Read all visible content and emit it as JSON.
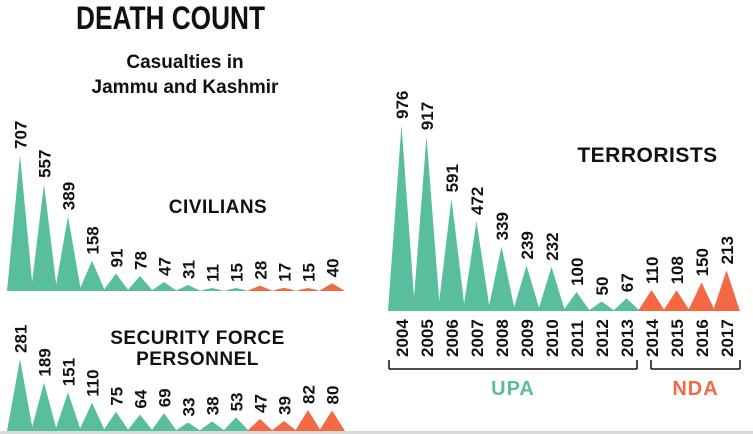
{
  "title": "DEATH COUNT",
  "subtitle": "Casualties in\nJammu and Kashmir",
  "colors": {
    "upa_teal": "#59BE9D",
    "nda_orange": "#F26944",
    "label": "#111111",
    "background": "#ffffff"
  },
  "legend": {
    "upa": "UPA",
    "nda": "NDA"
  },
  "chart_data": [
    {
      "type": "area",
      "name": "civilians",
      "title": "CIVILIANS",
      "values": [
        707,
        557,
        389,
        158,
        91,
        78,
        47,
        31,
        11,
        15,
        28,
        17,
        15,
        40
      ],
      "nda_from_index": 10
    },
    {
      "type": "area",
      "name": "security-force-personnel",
      "title": "SECURITY FORCE\nPERSONNEL",
      "values": [
        281,
        189,
        151,
        110,
        75,
        64,
        69,
        33,
        38,
        53,
        47,
        39,
        82,
        80
      ],
      "nda_from_index": 10
    },
    {
      "type": "area",
      "name": "terrorists",
      "title": "TERRORISTS",
      "categories": [
        "2004",
        "2005",
        "2006",
        "2007",
        "2008",
        "2009",
        "2010",
        "2011",
        "2012",
        "2013",
        "2014",
        "2015",
        "2016",
        "2017"
      ],
      "values": [
        976,
        917,
        591,
        472,
        339,
        239,
        232,
        100,
        50,
        67,
        110,
        108,
        150,
        213
      ],
      "nda_from_index": 10,
      "x_axis_groups": [
        {
          "label": "UPA",
          "from": "2004",
          "to": "2013"
        },
        {
          "label": "NDA",
          "from": "2014",
          "to": "2017"
        }
      ]
    }
  ]
}
